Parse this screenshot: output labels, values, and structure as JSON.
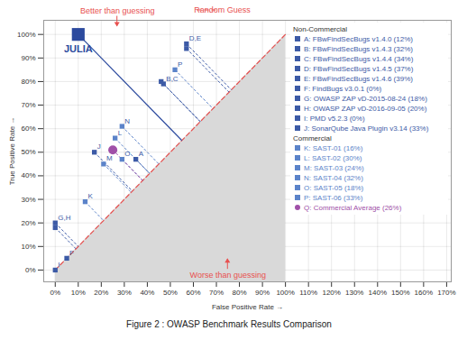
{
  "chart_data": {
    "type": "scatter",
    "xlabel": "False Positive Rate",
    "ylabel": "True Positive Rate",
    "caption": "Figure 2 : OWASP Benchmark Results Comparison",
    "xlim": [
      -5,
      172
    ],
    "ylim": [
      -5,
      106
    ],
    "xticks": [
      {
        "value": 0,
        "label": "0%"
      },
      {
        "value": 10,
        "label": "10%"
      },
      {
        "value": 20,
        "label": "20%"
      },
      {
        "value": 30,
        "label": "30%"
      },
      {
        "value": 40,
        "label": "40%"
      },
      {
        "value": 50,
        "label": "50%"
      },
      {
        "value": 60,
        "label": "60%"
      },
      {
        "value": 70,
        "label": "70%"
      },
      {
        "value": 80,
        "label": "80%"
      },
      {
        "value": 90,
        "label": "90%"
      },
      {
        "value": 100,
        "label": "100%"
      },
      {
        "value": 110,
        "label": "110%"
      },
      {
        "value": 120,
        "label": "120%"
      },
      {
        "value": 130,
        "label": "130%"
      },
      {
        "value": 140,
        "label": "140%"
      },
      {
        "value": 150,
        "label": "150%"
      },
      {
        "value": 160,
        "label": "160%"
      },
      {
        "value": 170,
        "label": "170%"
      }
    ],
    "yticks": [
      {
        "value": 0,
        "label": "0%"
      },
      {
        "value": 10,
        "label": "10%"
      },
      {
        "value": 20,
        "label": "20%"
      },
      {
        "value": 30,
        "label": "30%"
      },
      {
        "value": 40,
        "label": "40%"
      },
      {
        "value": 50,
        "label": "50%"
      },
      {
        "value": 60,
        "label": "60%"
      },
      {
        "value": 70,
        "label": "70%"
      },
      {
        "value": 80,
        "label": "80%"
      },
      {
        "value": 90,
        "label": "90%"
      },
      {
        "value": 100,
        "label": "100%"
      }
    ],
    "grid": true,
    "legend": "top-right",
    "groups": [
      {
        "name": "Non-Commercial",
        "series": [
          {
            "name": "A: FBwFindSecBugs v1.4.0 (12%)",
            "x": 35,
            "y": 47,
            "color": "#3c5aa6",
            "marker": "square"
          },
          {
            "name": "B: FBwFindSecBugs v1.4.3 (32%)",
            "x": 47,
            "y": 79,
            "color": "#3c5aa6",
            "marker": "square"
          },
          {
            "name": "C: FBwFindSecBugs v1.4.4 (34%)",
            "x": 46,
            "y": 80,
            "color": "#3c5aa6",
            "marker": "square"
          },
          {
            "name": "D: FBwFindSecBugs v1.4.5 (37%)",
            "x": 57,
            "y": 94,
            "color": "#3c5aa6",
            "marker": "square"
          },
          {
            "name": "E: FBwFindSecBugs v1.4.6 (39%)",
            "x": 57,
            "y": 96,
            "color": "#3c5aa6",
            "marker": "square"
          },
          {
            "name": "F: FindBugs v3.0.1 (0%)",
            "x": 5,
            "y": 5,
            "color": "#3c5aa6",
            "marker": "square"
          },
          {
            "name": "G: OWASP ZAP vD-2015-08-24 (18%)",
            "x": 0,
            "y": 18,
            "color": "#3c5aa6",
            "marker": "square"
          },
          {
            "name": "H: OWASP ZAP vD-2016-09-05 (20%)",
            "x": 0,
            "y": 20,
            "color": "#3c5aa6",
            "marker": "square"
          },
          {
            "name": "I: PMD v5.2.3 (0%)",
            "x": 0,
            "y": 0,
            "color": "#3c5aa6",
            "marker": "square"
          },
          {
            "name": "J: SonarQube Java Plugin v3.14 (33%)",
            "x": 17,
            "y": 50,
            "color": "#3c5aa6",
            "marker": "square"
          }
        ]
      },
      {
        "name": "Commercial",
        "series": [
          {
            "name": "K: SAST-01 (16%)",
            "x": 13,
            "y": 29,
            "color": "#5b83c9",
            "marker": "square"
          },
          {
            "name": "L: SAST-02 (30%)",
            "x": 26,
            "y": 56,
            "color": "#5b83c9",
            "marker": "square"
          },
          {
            "name": "M: SAST-03 (24%)",
            "x": 21,
            "y": 45,
            "color": "#5b83c9",
            "marker": "square"
          },
          {
            "name": "N: SAST-04 (32%)",
            "x": 29,
            "y": 61,
            "color": "#5b83c9",
            "marker": "square"
          },
          {
            "name": "O: SAST-05 (18%)",
            "x": 29,
            "y": 47,
            "color": "#5b83c9",
            "marker": "square"
          },
          {
            "name": "P: SAST-06 (33%)",
            "x": 52,
            "y": 85,
            "color": "#5b83c9",
            "marker": "square"
          },
          {
            "name": "Q: Commercial Average (26%)",
            "x": 25,
            "y": 51,
            "color": "#a050a8",
            "marker": "circle"
          }
        ]
      }
    ],
    "highlight": {
      "name": "JULIA",
      "x": 10,
      "y": 100,
      "color": "#2c4a9e",
      "marker": "square"
    },
    "point_labels": [
      {
        "text": "D,E",
        "x": 57,
        "y": 96
      },
      {
        "text": "P",
        "x": 52,
        "y": 85
      },
      {
        "text": "B,C",
        "x": 47,
        "y": 79
      },
      {
        "text": "N",
        "x": 29,
        "y": 61
      },
      {
        "text": "L",
        "x": 26,
        "y": 56
      },
      {
        "text": "J",
        "x": 17,
        "y": 50
      },
      {
        "text": "M",
        "x": 21,
        "y": 45
      },
      {
        "text": "O",
        "x": 29,
        "y": 47
      },
      {
        "text": "A",
        "x": 35,
        "y": 47
      },
      {
        "text": "K",
        "x": 13,
        "y": 29
      },
      {
        "text": "G,H",
        "x": 0,
        "y": 20
      },
      {
        "text": "F",
        "x": 5,
        "y": 5
      },
      {
        "text": "I",
        "x": 0,
        "y": 0
      }
    ],
    "reference_line": {
      "name": "Random Guess",
      "x": [
        0,
        100
      ],
      "y": [
        0,
        100
      ],
      "color": "#e8504f",
      "line_style": "dashed"
    },
    "annotations": [
      {
        "text": "Better than guessing",
        "x": 27,
        "y": 110,
        "color": "#e8504f"
      },
      {
        "text": "Worse than guessing",
        "x": 75,
        "y": -2,
        "color": "#e8504f"
      }
    ]
  }
}
